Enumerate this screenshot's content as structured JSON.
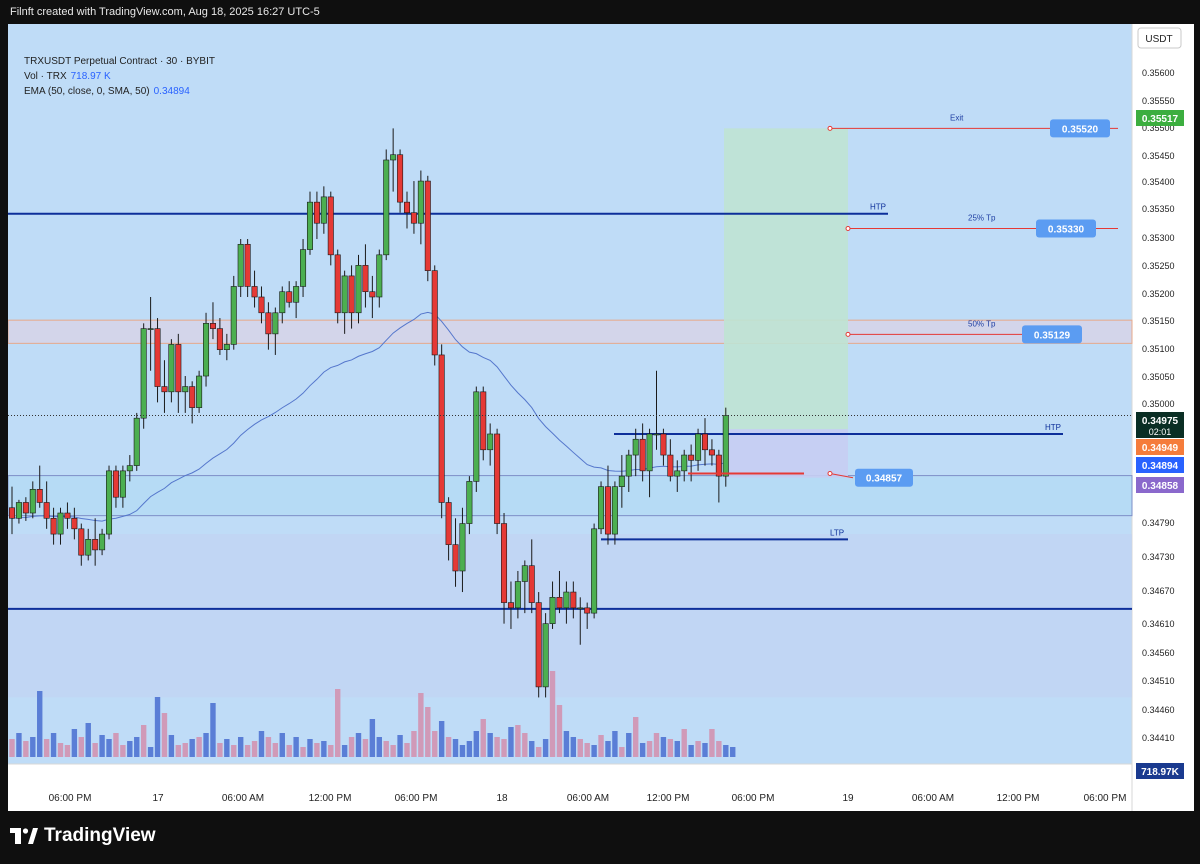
{
  "header": {
    "text": "Filnft created with TradingView.com, Aug 18, 2025 16:27 UTC-5"
  },
  "legend": {
    "symbol": "TRXUSDT Perpetual Contract · 30 · BYBIT",
    "vol_label": "Vol · TRX",
    "vol_value": "718.97 K",
    "ema_label": "EMA (50, close, 0, SMA, 50)",
    "ema_value": "0.34894"
  },
  "brand": {
    "name": "TradingView"
  },
  "colors": {
    "up": "#4caf50",
    "down": "#e53935",
    "ema": "#5577cc",
    "level": "#0d2f9a",
    "target_box": "#bfe3d3",
    "stop_box": "#c6cdf2",
    "label_blue": "#5b9cf2",
    "current_price_bg": "#0a2e24",
    "ema_tag_bg": "#2962ff",
    "orange_tag_bg": "#f57c3b",
    "purple_tag_bg": "#8a68cc",
    "green_tag_bg": "#3cae3f",
    "volume_up": "#5a7ed6",
    "volume_down": "#d09ab8"
  },
  "chart_data": {
    "type": "candlestick",
    "symbol": "TRXUSDT",
    "timeframe": "30",
    "currency": "USDT",
    "ylim": [
      0.34363,
      0.35627
    ],
    "y_ticks": [
      "0.35600",
      "0.35550",
      "0.35500",
      "0.35450",
      "0.35400",
      "0.35350",
      "0.35300",
      "0.35250",
      "0.35200",
      "0.35150",
      "0.35100",
      "0.35050",
      "0.35000",
      "0.34790",
      "0.34730",
      "0.34670",
      "0.34610",
      "0.34560",
      "0.34510",
      "0.34460",
      "0.34410"
    ],
    "x_ticks": [
      "06:00 PM",
      "17",
      "06:00 AM",
      "12:00 PM",
      "06:00 PM",
      "18",
      "06:00 AM",
      "12:00 PM",
      "06:00 PM",
      "19",
      "06:00 AM",
      "12:00 PM",
      "06:00 PM"
    ],
    "current_price": {
      "value": "0.34975",
      "countdown": "02:01"
    },
    "price_tags": [
      {
        "label": "0.35517",
        "kind": "green"
      },
      {
        "label": "0.34949",
        "kind": "orange"
      },
      {
        "label": "0.34894",
        "kind": "ema"
      },
      {
        "label": "0.34858",
        "kind": "purple"
      }
    ],
    "volume_tag": "718.97K",
    "levels": [
      {
        "price": 0.35358,
        "label": "HTP"
      },
      {
        "price": 0.3494,
        "label": "HTP"
      },
      {
        "price": 0.3474,
        "label": "LTP"
      },
      {
        "price": 0.34608,
        "label": ""
      }
    ],
    "zones": [
      {
        "from": 0.35112,
        "to": 0.35156
      },
      {
        "from": 0.34785,
        "to": 0.34861
      }
    ],
    "targets": [
      {
        "label": "Exit",
        "price": "0.35520",
        "y": 0.3552
      },
      {
        "label": "25% Tp",
        "price": "0.35330",
        "y": 0.3533
      },
      {
        "label": "50% Tp",
        "price": "0.35129",
        "y": 0.35129
      },
      {
        "label": "",
        "price": "0.34857",
        "y": 0.34857
      }
    ],
    "ema_value": 0.34894,
    "candles": [
      [
        0.348,
        0.3484,
        0.3475,
        0.3478
      ],
      [
        0.3478,
        0.34815,
        0.3477,
        0.3481
      ],
      [
        0.3481,
        0.3482,
        0.34775,
        0.3479
      ],
      [
        0.3479,
        0.3485,
        0.3478,
        0.34835
      ],
      [
        0.34835,
        0.3488,
        0.348,
        0.3481
      ],
      [
        0.3481,
        0.3485,
        0.3476,
        0.3478
      ],
      [
        0.3478,
        0.348,
        0.3473,
        0.3475
      ],
      [
        0.3475,
        0.348,
        0.3473,
        0.3479
      ],
      [
        0.3479,
        0.3481,
        0.3476,
        0.3478
      ],
      [
        0.3478,
        0.348,
        0.3474,
        0.3476
      ],
      [
        0.3476,
        0.3477,
        0.3469,
        0.3471
      ],
      [
        0.3471,
        0.3476,
        0.347,
        0.3474
      ],
      [
        0.3474,
        0.3478,
        0.3469,
        0.3472
      ],
      [
        0.3472,
        0.3476,
        0.3471,
        0.3475
      ],
      [
        0.3475,
        0.3488,
        0.3474,
        0.3487
      ],
      [
        0.3487,
        0.3488,
        0.348,
        0.3482
      ],
      [
        0.3482,
        0.3488,
        0.348,
        0.3487
      ],
      [
        0.3487,
        0.349,
        0.3485,
        0.3488
      ],
      [
        0.3488,
        0.3498,
        0.3487,
        0.3497
      ],
      [
        0.3497,
        0.3515,
        0.3495,
        0.3514
      ],
      [
        0.3514,
        0.352,
        0.3506,
        0.3514
      ],
      [
        0.3514,
        0.3516,
        0.35,
        0.3503
      ],
      [
        0.3503,
        0.3508,
        0.3498,
        0.3502
      ],
      [
        0.3502,
        0.3512,
        0.35,
        0.3511
      ],
      [
        0.3511,
        0.3513,
        0.3498,
        0.3502
      ],
      [
        0.3502,
        0.3505,
        0.3498,
        0.3503
      ],
      [
        0.3503,
        0.3504,
        0.3496,
        0.3499
      ],
      [
        0.3499,
        0.3506,
        0.3498,
        0.3505
      ],
      [
        0.3505,
        0.3517,
        0.3503,
        0.3515
      ],
      [
        0.3515,
        0.3519,
        0.3512,
        0.3514
      ],
      [
        0.3514,
        0.3516,
        0.3509,
        0.351
      ],
      [
        0.351,
        0.3513,
        0.3508,
        0.3511
      ],
      [
        0.3511,
        0.3524,
        0.351,
        0.3522
      ],
      [
        0.3522,
        0.3531,
        0.352,
        0.353
      ],
      [
        0.353,
        0.3531,
        0.352,
        0.3522
      ],
      [
        0.3522,
        0.3525,
        0.3518,
        0.352
      ],
      [
        0.352,
        0.3522,
        0.3515,
        0.3517
      ],
      [
        0.3517,
        0.3519,
        0.351,
        0.3513
      ],
      [
        0.3513,
        0.3518,
        0.3509,
        0.3517
      ],
      [
        0.3517,
        0.3522,
        0.3515,
        0.3521
      ],
      [
        0.3521,
        0.3523,
        0.3518,
        0.3519
      ],
      [
        0.3519,
        0.3523,
        0.3516,
        0.3522
      ],
      [
        0.3522,
        0.3531,
        0.352,
        0.3529
      ],
      [
        0.3529,
        0.354,
        0.3528,
        0.3538
      ],
      [
        0.3538,
        0.354,
        0.3531,
        0.3534
      ],
      [
        0.3534,
        0.3541,
        0.3532,
        0.3539
      ],
      [
        0.3539,
        0.354,
        0.3526,
        0.3528
      ],
      [
        0.3528,
        0.3529,
        0.3515,
        0.3517
      ],
      [
        0.3517,
        0.3525,
        0.3513,
        0.3524
      ],
      [
        0.3524,
        0.3526,
        0.3514,
        0.3517
      ],
      [
        0.3517,
        0.3528,
        0.3515,
        0.3526
      ],
      [
        0.3526,
        0.353,
        0.3518,
        0.3521
      ],
      [
        0.3521,
        0.3524,
        0.3516,
        0.352
      ],
      [
        0.352,
        0.3529,
        0.3518,
        0.3528
      ],
      [
        0.3528,
        0.3548,
        0.3527,
        0.3546
      ],
      [
        0.3546,
        0.3552,
        0.354,
        0.3547
      ],
      [
        0.3547,
        0.3548,
        0.3536,
        0.3538
      ],
      [
        0.3538,
        0.354,
        0.3533,
        0.3536
      ],
      [
        0.3536,
        0.3542,
        0.3532,
        0.3534
      ],
      [
        0.3534,
        0.3544,
        0.353,
        0.3542
      ],
      [
        0.3542,
        0.3543,
        0.3523,
        0.3525
      ],
      [
        0.3525,
        0.3526,
        0.3507,
        0.3509
      ],
      [
        0.3509,
        0.3511,
        0.3478,
        0.3481
      ],
      [
        0.3481,
        0.3482,
        0.347,
        0.3473
      ],
      [
        0.3473,
        0.3478,
        0.3465,
        0.3468
      ],
      [
        0.3468,
        0.348,
        0.3464,
        0.3477
      ],
      [
        0.3477,
        0.3486,
        0.3475,
        0.3485
      ],
      [
        0.3485,
        0.3503,
        0.3483,
        0.3502
      ],
      [
        0.3502,
        0.3503,
        0.3489,
        0.3491
      ],
      [
        0.3491,
        0.3496,
        0.3488,
        0.3494
      ],
      [
        0.3494,
        0.3495,
        0.3475,
        0.3477
      ],
      [
        0.3477,
        0.3479,
        0.3458,
        0.3462
      ],
      [
        0.3462,
        0.3466,
        0.3457,
        0.3461
      ],
      [
        0.3461,
        0.3468,
        0.3459,
        0.3466
      ],
      [
        0.3466,
        0.347,
        0.346,
        0.3469
      ],
      [
        0.3469,
        0.3474,
        0.346,
        0.3462
      ],
      [
        0.3462,
        0.3464,
        0.3444,
        0.3446
      ],
      [
        0.3446,
        0.346,
        0.3444,
        0.3458
      ],
      [
        0.3458,
        0.3466,
        0.3457,
        0.3463
      ],
      [
        0.3463,
        0.3468,
        0.346,
        0.3461
      ],
      [
        0.3461,
        0.3466,
        0.3458,
        0.3464
      ],
      [
        0.3464,
        0.3466,
        0.3459,
        0.3461
      ],
      [
        0.3461,
        0.3463,
        0.3454,
        0.3461
      ],
      [
        0.3461,
        0.3462,
        0.3457,
        0.346
      ],
      [
        0.346,
        0.3477,
        0.3459,
        0.3476
      ],
      [
        0.3476,
        0.3485,
        0.3475,
        0.3484
      ],
      [
        0.3484,
        0.3488,
        0.3473,
        0.3475
      ],
      [
        0.3475,
        0.3485,
        0.3473,
        0.3484
      ],
      [
        0.3484,
        0.349,
        0.348,
        0.3486
      ],
      [
        0.3486,
        0.3491,
        0.3483,
        0.349
      ],
      [
        0.349,
        0.3495,
        0.3486,
        0.3493
      ],
      [
        0.3493,
        0.3496,
        0.3485,
        0.3487
      ],
      [
        0.3487,
        0.3495,
        0.3482,
        0.3494
      ],
      [
        0.3494,
        0.3506,
        0.3491,
        0.3494
      ],
      [
        0.3494,
        0.3495,
        0.3488,
        0.349
      ],
      [
        0.349,
        0.3493,
        0.3485,
        0.3486
      ],
      [
        0.3486,
        0.3489,
        0.3483,
        0.3487
      ],
      [
        0.3487,
        0.3491,
        0.3485,
        0.349
      ],
      [
        0.349,
        0.3492,
        0.3485,
        0.3489
      ],
      [
        0.3489,
        0.3495,
        0.3487,
        0.3494
      ],
      [
        0.3494,
        0.3497,
        0.3488,
        0.3491
      ],
      [
        0.3491,
        0.3493,
        0.3488,
        0.349
      ],
      [
        0.349,
        0.3491,
        0.3481,
        0.3486
      ],
      [
        0.3486,
        0.3499,
        0.3484,
        0.34975
      ]
    ],
    "volumes": [
      0.09,
      0.12,
      0.08,
      0.1,
      0.33,
      0.09,
      0.12,
      0.07,
      0.06,
      0.14,
      0.1,
      0.17,
      0.07,
      0.11,
      0.09,
      0.12,
      0.06,
      0.08,
      0.1,
      0.16,
      0.05,
      0.3,
      0.22,
      0.11,
      0.06,
      0.07,
      0.09,
      0.1,
      0.12,
      0.27,
      0.07,
      0.09,
      0.06,
      0.1,
      0.06,
      0.08,
      0.13,
      0.1,
      0.07,
      0.12,
      0.06,
      0.1,
      0.05,
      0.09,
      0.07,
      0.08,
      0.06,
      0.34,
      0.06,
      0.1,
      0.12,
      0.09,
      0.19,
      0.1,
      0.08,
      0.06,
      0.11,
      0.07,
      0.13,
      0.32,
      0.25,
      0.13,
      0.18,
      0.1,
      0.09,
      0.06,
      0.08,
      0.13,
      0.19,
      0.12,
      0.1,
      0.09,
      0.15,
      0.16,
      0.12,
      0.08,
      0.05,
      0.09,
      0.43,
      0.26,
      0.13,
      0.1,
      0.09,
      0.07,
      0.06,
      0.11,
      0.08,
      0.13,
      0.05,
      0.12,
      0.2,
      0.07,
      0.08,
      0.12,
      0.1,
      0.09,
      0.08,
      0.14,
      0.06,
      0.08,
      0.07,
      0.14,
      0.08,
      0.06,
      0.05
    ],
    "volume_down_flags": [
      1,
      0,
      1,
      0,
      0,
      1,
      0,
      1,
      1,
      0,
      1,
      0,
      1,
      0,
      0,
      1,
      1,
      0,
      0,
      1,
      0,
      0,
      1,
      0,
      1,
      1,
      0,
      1,
      0,
      0,
      1,
      0,
      1,
      0,
      1,
      1,
      0,
      1,
      1,
      0,
      1,
      0,
      1,
      0,
      1,
      0,
      1,
      1,
      0,
      1,
      0,
      1,
      0,
      0,
      1,
      1,
      0,
      1,
      1,
      1,
      1,
      1,
      0,
      1,
      0,
      0,
      0,
      0,
      1,
      0,
      1,
      1,
      0,
      1,
      1,
      0,
      1,
      0,
      1,
      1,
      0,
      0,
      1,
      1,
      0,
      1,
      0,
      0,
      1,
      0,
      1,
      0,
      1,
      1,
      0,
      1,
      0,
      1,
      0,
      1,
      0,
      1,
      1,
      0,
      0
    ]
  }
}
